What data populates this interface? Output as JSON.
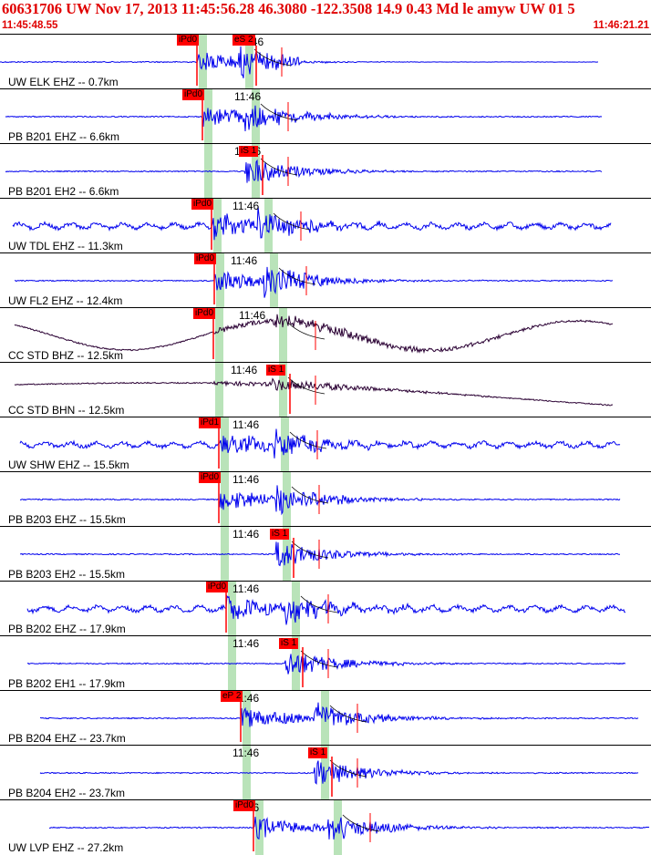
{
  "header": {
    "title": "60631706 UW Nov 17, 2013 11:45:56.28   46.3080 -122.3508 14.9 0.43 Md le amyw UW 01   5",
    "time_start": "11:45:48.55",
    "time_end": "11:46:21.21"
  },
  "colors": {
    "trace_velocity": "#0000ee",
    "trace_broadband": "#2a0033",
    "pick": "#ff0000",
    "window_band": "#b9e3b9"
  },
  "minute_label": "11:46",
  "stations": [
    {
      "label": "UW ELK EHZ -- 0.7km",
      "pick1": "iPd0",
      "pick2": "eS 2",
      "type": "velocity"
    },
    {
      "label": "PB B201 EHZ -- 6.6km",
      "pick1": "iPd0",
      "pick2": "",
      "type": "velocity"
    },
    {
      "label": "PB B201 EH2 -- 6.6km",
      "pick1": "",
      "pick2": "iS 1",
      "type": "velocity"
    },
    {
      "label": "UW TDL EHZ -- 11.3km",
      "pick1": "iPd0",
      "pick2": "",
      "type": "velocity"
    },
    {
      "label": "UW FL2 EHZ -- 12.4km",
      "pick1": "iPd0",
      "pick2": "",
      "type": "velocity"
    },
    {
      "label": "CC STD BHZ -- 12.5km",
      "pick1": "iPd0",
      "pick2": "",
      "type": "broadband"
    },
    {
      "label": "CC STD BHN -- 12.5km",
      "pick1": "",
      "pick2": "iS 1",
      "type": "broadband"
    },
    {
      "label": "UW SHW EHZ -- 15.5km",
      "pick1": "iPd1",
      "pick2": "",
      "type": "velocity"
    },
    {
      "label": "PB B203 EHZ -- 15.5km",
      "pick1": "iPd0",
      "pick2": "",
      "type": "velocity"
    },
    {
      "label": "PB B203 EH2 -- 15.5km",
      "pick1": "",
      "pick2": "iS 1",
      "type": "velocity"
    },
    {
      "label": "PB B202 EHZ -- 17.9km",
      "pick1": "iPd0",
      "pick2": "",
      "type": "velocity"
    },
    {
      "label": "PB B202 EH1 -- 17.9km",
      "pick1": "",
      "pick2": "iS 1",
      "type": "velocity"
    },
    {
      "label": "PB B204 EHZ -- 23.7km",
      "pick1": "eP 2",
      "pick2": "",
      "type": "velocity"
    },
    {
      "label": "PB B204 EH2 -- 23.7km",
      "pick1": "",
      "pick2": "iS 1",
      "type": "velocity"
    },
    {
      "label": "UW LVP EHZ -- 27.2km",
      "pick1": "iPd0",
      "pick2": "",
      "type": "velocity"
    }
  ]
}
